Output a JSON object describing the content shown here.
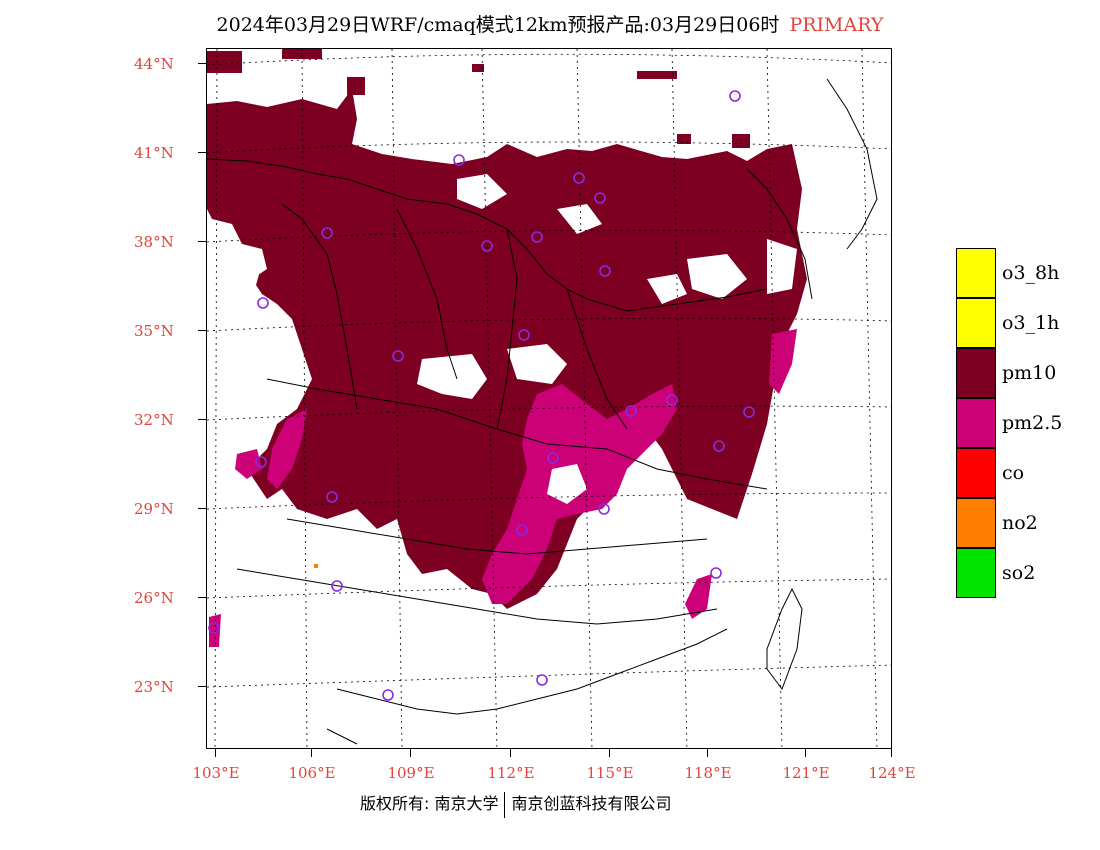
{
  "header": {
    "title": "2024年03月29日WRF/cmaq模式12km预报产品:03月29日06时",
    "tag": "PRIMARY"
  },
  "axes": {
    "lat_labels": [
      "44°N",
      "41°N",
      "38°N",
      "35°N",
      "32°N",
      "29°N",
      "26°N",
      "23°N"
    ],
    "lon_labels": [
      "103°E",
      "106°E",
      "109°E",
      "112°E",
      "115°E",
      "118°E",
      "121°E",
      "124°E"
    ]
  },
  "legend": {
    "items": [
      {
        "label": "o3_8h",
        "color": "#ffff00"
      },
      {
        "label": "o3_1h",
        "color": "#ffff00"
      },
      {
        "label": "pm10",
        "color": "#7d0023"
      },
      {
        "label": "pm2.5",
        "color": "#cc0077"
      },
      {
        "label": "co",
        "color": "#ff0000"
      },
      {
        "label": "no2",
        "color": "#ff7e00"
      },
      {
        "label": "so2",
        "color": "#00e400"
      }
    ]
  },
  "footer": {
    "left": "版权所有: 南京大学",
    "right": "南京创蓝科技有限公司"
  },
  "colors": {
    "pm10": "#7d0023",
    "pm25": "#cc0077",
    "station": "#8a2be2",
    "axis_label": "#e0443c"
  }
}
